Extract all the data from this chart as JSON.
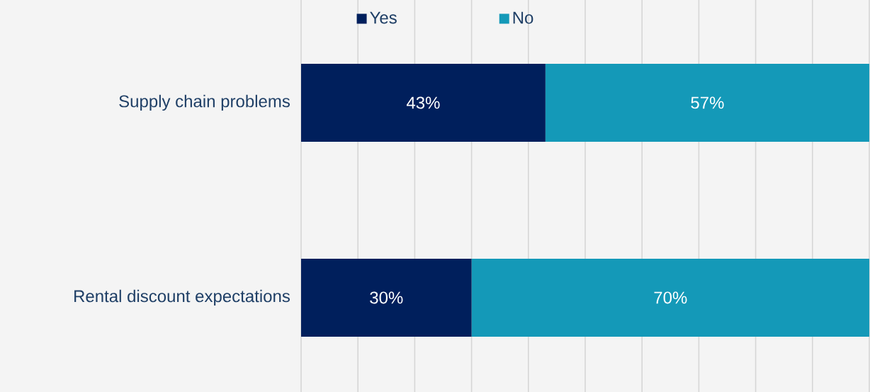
{
  "chart_data": {
    "type": "bar",
    "orientation": "horizontal",
    "stacked": true,
    "categories": [
      "Supply chain problems",
      "Rental discount expectations"
    ],
    "series": [
      {
        "name": "Yes",
        "color": "#001f5c",
        "values": [
          43,
          30
        ],
        "value_labels": [
          "43%",
          "30%"
        ]
      },
      {
        "name": "No",
        "color": "#1499b8",
        "values": [
          57,
          70
        ],
        "value_labels": [
          "57%",
          "70%"
        ]
      }
    ],
    "grid": "x",
    "legend": "top",
    "tick_labels": "y"
  }
}
